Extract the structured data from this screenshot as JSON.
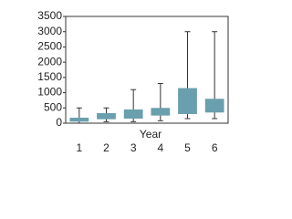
{
  "chart_data": {
    "type": "box",
    "x_label": "Year",
    "categories": [
      "1",
      "2",
      "3",
      "4",
      "5",
      "6"
    ],
    "color": "#6a9fad",
    "min": [
      0,
      50,
      50,
      80,
      150,
      150
    ],
    "q1": [
      50,
      130,
      150,
      250,
      300,
      350
    ],
    "q3": [
      180,
      330,
      450,
      500,
      1150,
      800
    ],
    "max": [
      500,
      500,
      1100,
      1300,
      3000,
      3000
    ],
    "ylim": [
      0,
      3500
    ],
    "yticks": [
      0,
      500,
      1000,
      1500,
      2000,
      2500,
      3000,
      3500
    ],
    "grid": false
  }
}
